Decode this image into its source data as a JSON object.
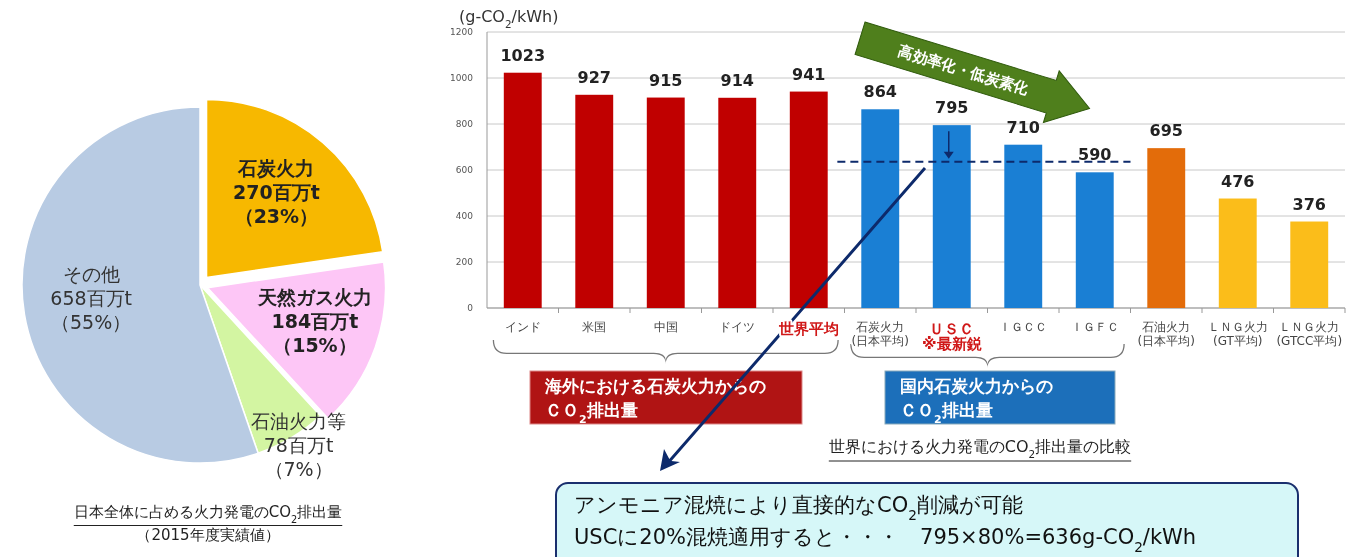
{
  "chart_data": [
    {
      "type": "pie",
      "title": "日本全体に占める火力発電のCO$_{2}$排出量",
      "subtitle": "（2015年度実績値）",
      "categories": [
        "石炭火力",
        "天然ガス火力",
        "石油火力等",
        "その他"
      ],
      "values": [
        270,
        184,
        78,
        658
      ],
      "value_labels": [
        "270百万t\n（23%）",
        "184百万t\n（15%）",
        "78百万t\n（7%）",
        "658百万t\n（55%）"
      ],
      "colors": [
        "#f7b800",
        "#fdc6f6",
        "#d3f5a2",
        "#b8cbe3"
      ]
    },
    {
      "type": "bar",
      "ylabel": "(g-CO$_{2}$/kWh)",
      "categories": [
        "インド",
        "米国",
        "中国",
        "ドイツ",
        "世界平均",
        "石炭火力\n(日本平均)",
        "ＵＳＣ\n※最新鋭",
        "ＩＧＣＣ",
        "ＩＧＦＣ",
        "石油火力\n(日本平均)",
        "ＬＮＧ火力\n(GT平均)",
        "ＬＮＧ火力\n(GTCC平均)"
      ],
      "values": [
        1023,
        927,
        915,
        914,
        941,
        864,
        795,
        710,
        590,
        695,
        476,
        376
      ],
      "colors": [
        "#c00000",
        "#c00000",
        "#c00000",
        "#c00000",
        "#c00000",
        "#1a7fd4",
        "#1a7fd4",
        "#1a7fd4",
        "#1a7fd4",
        "#e36c0a",
        "#fbbd1a",
        "#fbbd1a"
      ],
      "ylim": [
        0,
        1200
      ],
      "yticks": [
        0,
        200,
        400,
        600,
        800,
        1000,
        1200
      ],
      "grid": "y",
      "data_labels": true,
      "ref_lines": [
        {
          "axis": "y",
          "value": 636,
          "color": "#0d2a6b",
          "line_style": "dashed"
        }
      ],
      "annotations": [
        "高効率化・低炭素化",
        "海外における石炭火力からのＣＯ$_{2}$排出量",
        "国内石炭火力からのＣＯ$_{2}$排出量",
        "世界における火力発電のCO$_{2}$排出量の比較",
        "アンモニア混焼により直接的なCO$_{2}$削減が可能\nUSCに20%混焼適用すると・・・　795×80%=636g-CO$_{2}$/kWh"
      ]
    }
  ]
}
